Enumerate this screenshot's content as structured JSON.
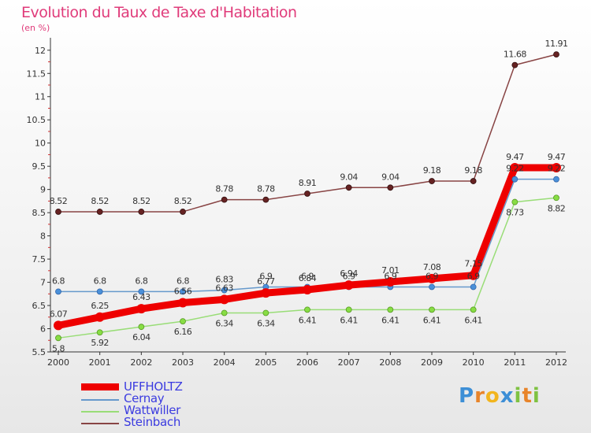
{
  "header": {
    "title": "Evolution du Taux de Taxe d'Habitation",
    "unit": "(en %)"
  },
  "logo": {
    "text": "Proxiti",
    "letters": [
      "P",
      "r",
      "o",
      "x",
      "i",
      "t",
      "i"
    ],
    "colors": [
      "#3d8fd6",
      "#e8842a",
      "#f2b51e",
      "#3d8fd6",
      "#7fc242",
      "#e8842a",
      "#7fc242"
    ]
  },
  "chart_data": {
    "type": "line",
    "x": [
      "2000",
      "2001",
      "2002",
      "2003",
      "2004",
      "2005",
      "2006",
      "2007",
      "2008",
      "2009",
      "2010",
      "2011",
      "2012"
    ],
    "ylim": [
      5.5,
      12.2
    ],
    "yticks": [
      "5.5",
      "6",
      "6.5",
      "7",
      "7.5",
      "8",
      "8.5",
      "9",
      "9.5",
      "10",
      "10.5",
      "11",
      "11.5",
      "12"
    ],
    "grid": false,
    "legend_position": "bottom-left",
    "series": [
      {
        "name": "UFFHOLTZ",
        "color": "#ee0000",
        "values": [
          6.07,
          6.25,
          6.43,
          6.56,
          6.63,
          6.77,
          6.84,
          6.94,
          7.01,
          7.08,
          7.15,
          9.47,
          9.47
        ],
        "labels": [
          "6.07",
          "6.25",
          "6.43",
          "6.56",
          "6.63",
          "6.77",
          "6.84",
          "6.94",
          "7.01",
          "7.08",
          "7.15",
          "9.47",
          "9.47"
        ]
      },
      {
        "name": "Cernay",
        "color": "#6699cc",
        "values": [
          6.8,
          6.8,
          6.8,
          6.8,
          6.83,
          6.9,
          6.9,
          6.9,
          6.9,
          6.9,
          6.9,
          9.22,
          9.22
        ],
        "labels": [
          "6.8",
          "6.8",
          "6.8",
          "6.8",
          "6.83",
          "6.9",
          "6.9",
          "6.9",
          "6.9",
          "6.9",
          "6.9",
          "9.22",
          "9.22"
        ]
      },
      {
        "name": "Wattwiller",
        "color": "#99dd77",
        "values": [
          5.8,
          5.92,
          6.04,
          6.16,
          6.34,
          6.34,
          6.41,
          6.41,
          6.41,
          6.41,
          6.41,
          8.73,
          8.82
        ],
        "labels": [
          "5.8",
          "5.92",
          "6.04",
          "6.16",
          "6.34",
          "6.34",
          "6.41",
          "6.41",
          "6.41",
          "6.41",
          "6.41",
          "8.73",
          "8.82"
        ]
      },
      {
        "name": "Steinbach",
        "color": "#884444",
        "values": [
          8.52,
          8.52,
          8.52,
          8.52,
          8.78,
          8.78,
          8.91,
          9.04,
          9.04,
          9.18,
          9.18,
          11.68,
          11.91
        ],
        "labels": [
          "8.52",
          "8.52",
          "8.52",
          "8.52",
          "8.78",
          "8.78",
          "8.91",
          "9.04",
          "9.04",
          "9.18",
          "9.18",
          "11.68",
          "11.91"
        ]
      }
    ]
  }
}
